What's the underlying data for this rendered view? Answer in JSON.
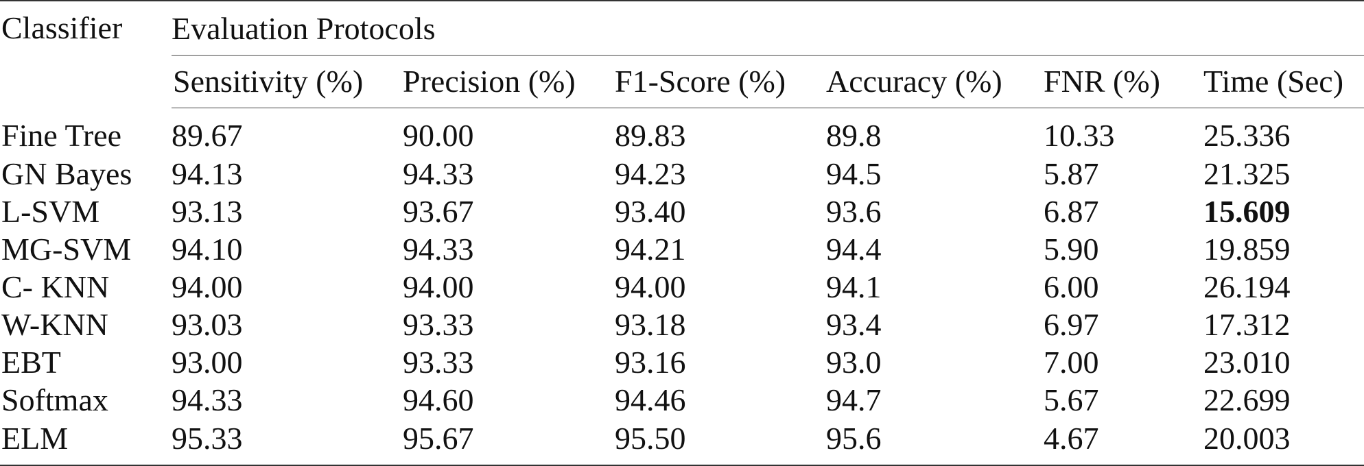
{
  "table": {
    "classifier_header": "Classifier",
    "group_header": "Evaluation Protocols",
    "columns": [
      "Sensitivity (%)",
      "Precision (%)",
      "F1-Score (%)",
      "Accuracy (%)",
      "FNR (%)",
      "Time (Sec)"
    ],
    "rows": [
      {
        "name": "Fine Tree",
        "values": [
          "89.67",
          "90.00",
          "89.83",
          "89.8",
          "10.33",
          "25.336"
        ]
      },
      {
        "name": "GN Bayes",
        "values": [
          "94.13",
          "94.33",
          "94.23",
          "94.5",
          "5.87",
          "21.325"
        ]
      },
      {
        "name": "L-SVM",
        "values": [
          "93.13",
          "93.67",
          "93.40",
          "93.6",
          "6.87",
          "15.609"
        ]
      },
      {
        "name": "MG-SVM",
        "values": [
          "94.10",
          "94.33",
          "94.21",
          "94.4",
          "5.90",
          "19.859"
        ]
      },
      {
        "name": "C- KNN",
        "values": [
          "94.00",
          "94.00",
          "94.00",
          "94.1",
          "6.00",
          "26.194"
        ]
      },
      {
        "name": "W-KNN",
        "values": [
          "93.03",
          "93.33",
          "93.18",
          "93.4",
          "6.97",
          "17.312"
        ]
      },
      {
        "name": "EBT",
        "values": [
          "93.00",
          "93.33",
          "93.16",
          "93.0",
          "7.00",
          "23.010"
        ]
      },
      {
        "name": "Softmax",
        "values": [
          "94.33",
          "94.60",
          "94.46",
          "94.7",
          "5.67",
          "22.699"
        ]
      },
      {
        "name": "ELM",
        "values": [
          "95.33",
          "95.67",
          "95.50",
          "95.6",
          "4.67",
          "20.003"
        ]
      }
    ],
    "bold_cell": {
      "row": 2,
      "col": 5
    }
  }
}
